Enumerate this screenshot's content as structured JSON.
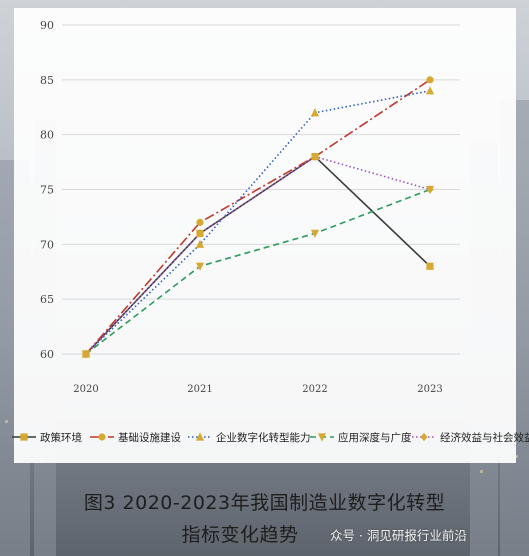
{
  "chart_data": {
    "type": "line",
    "categories": [
      "2020",
      "2021",
      "2022",
      "2023"
    ],
    "ylim": [
      60,
      90
    ],
    "yticks": [
      "60",
      "65",
      "70",
      "75",
      "80",
      "85",
      "90"
    ],
    "grid": true,
    "legend_position": "bottom",
    "series": [
      {
        "name": "政策环境",
        "values": [
          60,
          71,
          78,
          68
        ],
        "color": "#3a3a3a",
        "dash": "solid",
        "marker": "square"
      },
      {
        "name": "基础设施建设",
        "values": [
          60,
          72,
          78,
          85
        ],
        "color": "#c0392b",
        "dash": "dashdot",
        "marker": "circle"
      },
      {
        "name": "企业数字化转型能力",
        "values": [
          60,
          70,
          82,
          84
        ],
        "color": "#2f5fbf",
        "dash": "dotted",
        "marker": "triangle-up"
      },
      {
        "name": "应用深度与广度",
        "values": [
          60,
          68,
          71,
          75
        ],
        "color": "#2e9b5f",
        "dash": "dashed",
        "marker": "triangle-down"
      },
      {
        "name": "经济效益与社会效益",
        "values": [
          60,
          71,
          78,
          75
        ],
        "color": "#a052c2",
        "dash": "dotted",
        "marker": "diamond"
      }
    ],
    "marker_color": "#d6a933"
  },
  "caption": {
    "line1": "图3 2020-2023年我国制造业数字化转型",
    "line2": "指标变化趋势"
  },
  "watermark": "众号 · 洞见研报行业前沿"
}
